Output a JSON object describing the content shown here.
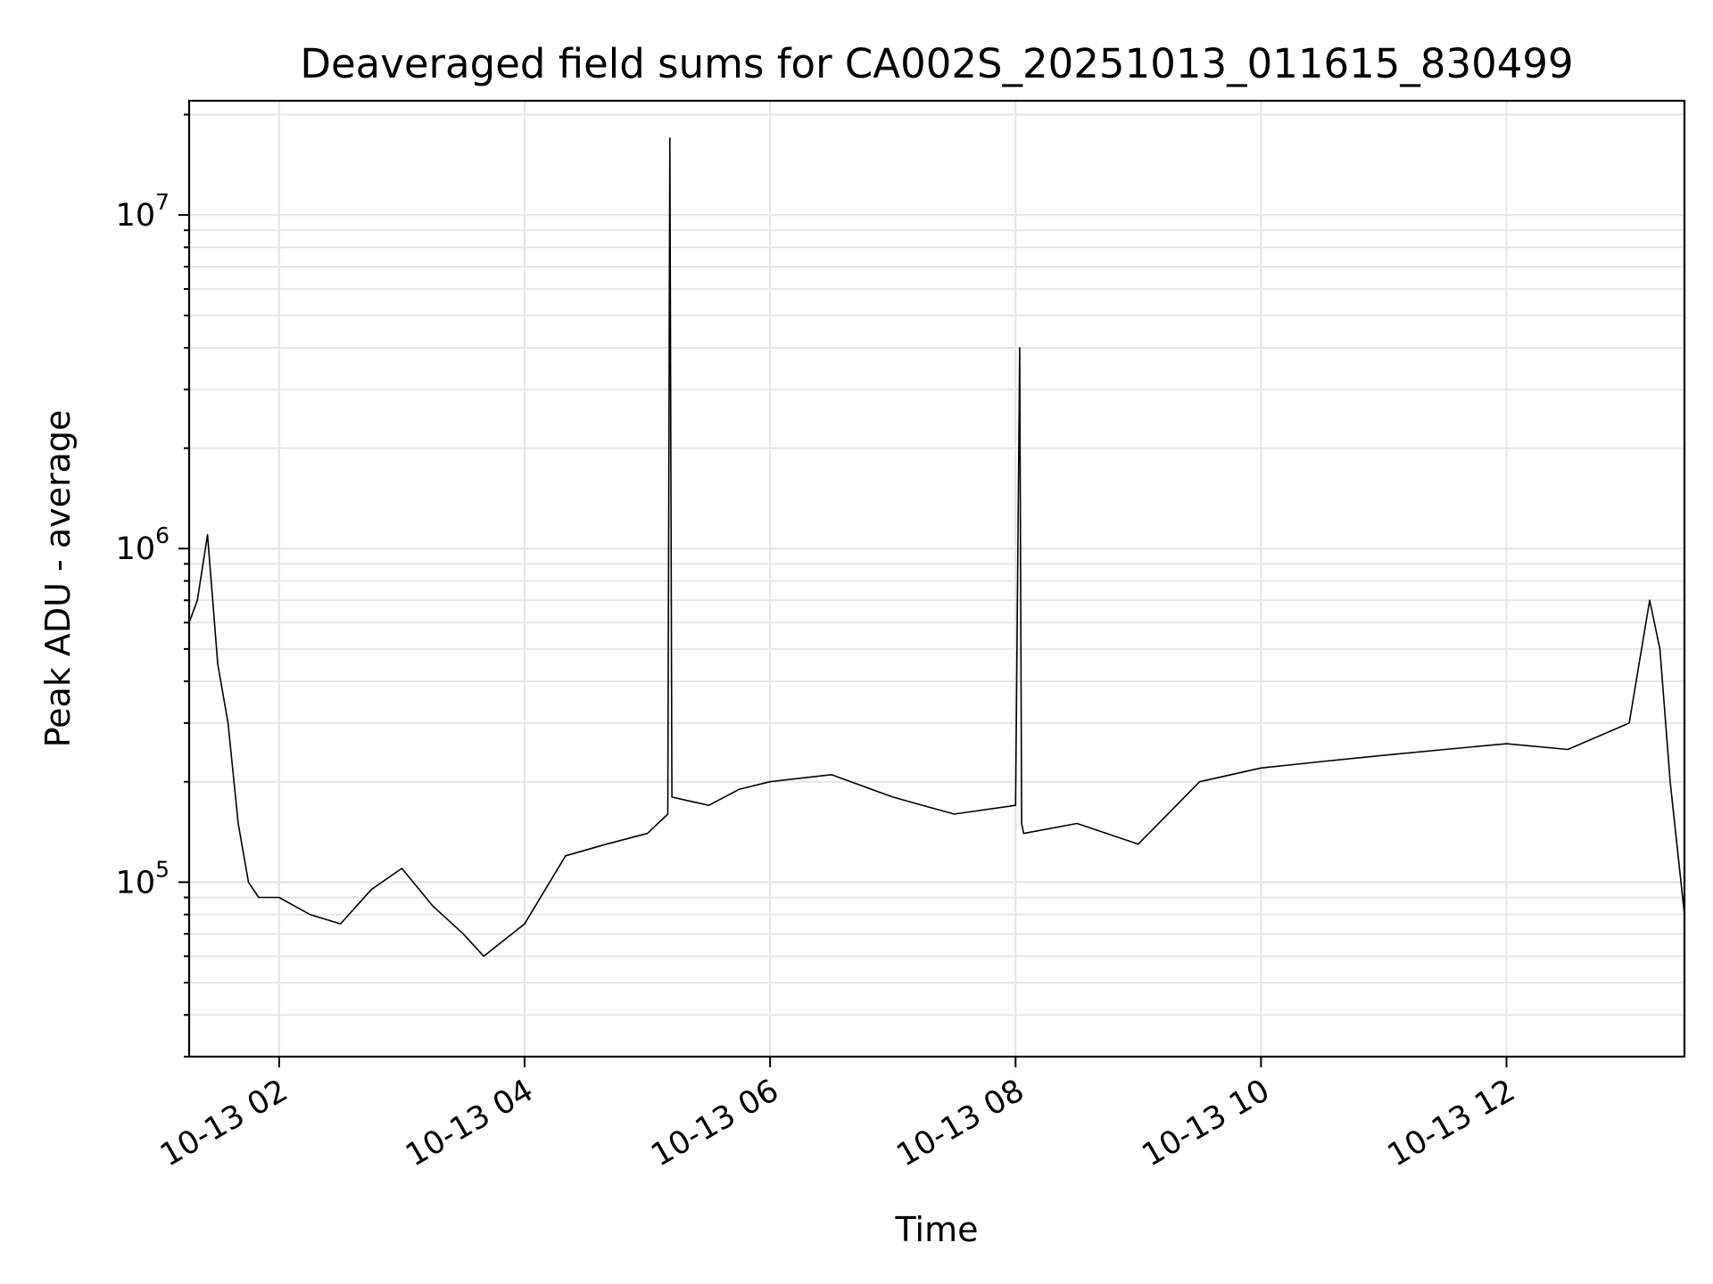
{
  "chart_data": {
    "type": "line",
    "title": "Deaveraged field sums for CA002S_20251013_011615_830499",
    "xlabel": "Time",
    "ylabel": "Peak ADU - average",
    "yscale": "log",
    "xlim": [
      "2025-10-13 01:16",
      "2025-10-13 13:27"
    ],
    "ylim": [
      30000,
      22000000
    ],
    "grid": true,
    "xticks": [
      {
        "value": "2025-10-13 02:00",
        "label": "10-13 02"
      },
      {
        "value": "2025-10-13 04:00",
        "label": "10-13 04"
      },
      {
        "value": "2025-10-13 06:00",
        "label": "10-13 06"
      },
      {
        "value": "2025-10-13 08:00",
        "label": "10-13 08"
      },
      {
        "value": "2025-10-13 10:00",
        "label": "10-13 10"
      },
      {
        "value": "2025-10-13 12:00",
        "label": "10-13 12"
      }
    ],
    "yticks": [
      {
        "value": 100000,
        "base": "10",
        "exp": "5"
      },
      {
        "value": 1000000,
        "base": "10",
        "exp": "6"
      },
      {
        "value": 10000000,
        "base": "10",
        "exp": "7"
      }
    ],
    "line_color": "#000000",
    "series": [
      {
        "x": [
          "2025-10-13 01:16",
          "2025-10-13 01:20",
          "2025-10-13 01:25",
          "2025-10-13 01:30",
          "2025-10-13 01:35",
          "2025-10-13 01:40",
          "2025-10-13 01:45",
          "2025-10-13 01:50",
          "2025-10-13 02:00",
          "2025-10-13 02:15",
          "2025-10-13 02:30",
          "2025-10-13 02:45",
          "2025-10-13 03:00",
          "2025-10-13 03:15",
          "2025-10-13 03:30",
          "2025-10-13 03:40",
          "2025-10-13 04:00",
          "2025-10-13 04:20",
          "2025-10-13 04:40",
          "2025-10-13 05:00",
          "2025-10-13 05:10",
          "2025-10-13 05:11",
          "2025-10-13 05:12",
          "2025-10-13 05:30",
          "2025-10-13 05:45",
          "2025-10-13 06:00",
          "2025-10-13 06:30",
          "2025-10-13 07:00",
          "2025-10-13 07:30",
          "2025-10-13 08:00",
          "2025-10-13 08:02",
          "2025-10-13 08:03",
          "2025-10-13 08:04",
          "2025-10-13 08:30",
          "2025-10-13 09:00",
          "2025-10-13 09:30",
          "2025-10-13 10:00",
          "2025-10-13 10:30",
          "2025-10-13 11:00",
          "2025-10-13 11:30",
          "2025-10-13 12:00",
          "2025-10-13 12:30",
          "2025-10-13 13:00",
          "2025-10-13 13:10",
          "2025-10-13 13:15",
          "2025-10-13 13:20",
          "2025-10-13 13:27"
        ],
        "y": [
          600000,
          700000,
          1100000,
          450000,
          300000,
          150000,
          100000,
          90000,
          90000,
          80000,
          75000,
          95000,
          110000,
          85000,
          70000,
          60000,
          75000,
          120000,
          130000,
          140000,
          160000,
          17000000,
          180000,
          170000,
          190000,
          200000,
          210000,
          180000,
          160000,
          170000,
          4000000,
          150000,
          140000,
          150000,
          130000,
          200000,
          220000,
          230000,
          240000,
          250000,
          260000,
          250000,
          300000,
          700000,
          500000,
          200000,
          80000
        ]
      }
    ]
  }
}
